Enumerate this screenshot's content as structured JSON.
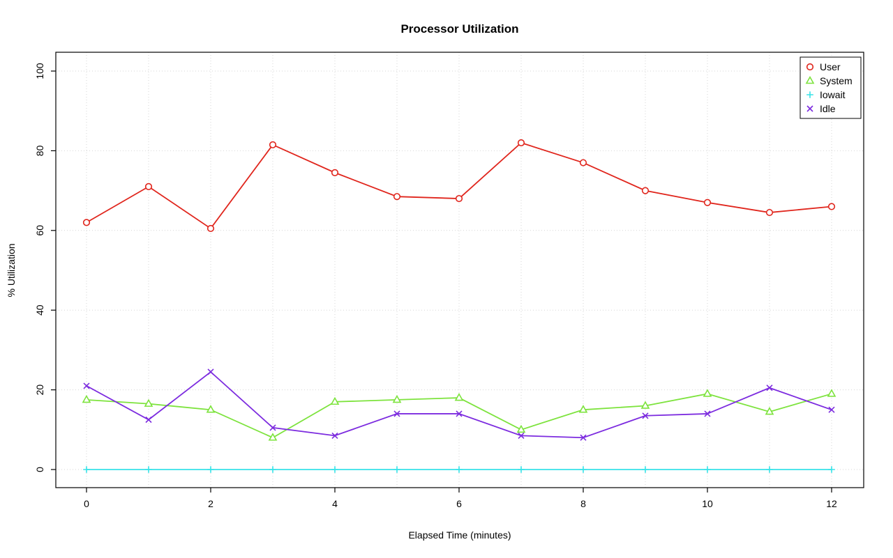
{
  "chart_data": {
    "type": "line",
    "title": "Processor Utilization",
    "xlabel": "Elapsed Time (minutes)",
    "ylabel": "% Utilization",
    "xlim": [
      0,
      12
    ],
    "ylim": [
      0,
      100
    ],
    "x_ticks": [
      0,
      2,
      4,
      6,
      8,
      10,
      12
    ],
    "y_ticks": [
      0,
      20,
      40,
      60,
      80,
      100
    ],
    "grid": true,
    "grid_style": "dotted",
    "grid_color": "#d6d6d6",
    "legend_position": "top-right",
    "x": [
      0,
      1,
      2,
      3,
      4,
      5,
      6,
      7,
      8,
      9,
      10,
      11,
      12
    ],
    "series": [
      {
        "name": "User",
        "color": "#e0251c",
        "marker": "circle",
        "values": [
          62,
          71,
          60.5,
          81.5,
          74.5,
          68.5,
          68,
          82,
          77,
          70,
          67,
          64.5,
          66
        ]
      },
      {
        "name": "System",
        "color": "#7de33d",
        "marker": "triangle",
        "values": [
          17.5,
          16.5,
          15,
          8,
          17,
          17.5,
          18,
          10,
          15,
          16,
          19,
          14.5,
          19
        ]
      },
      {
        "name": "Iowait",
        "color": "#36e3e8",
        "marker": "plus",
        "values": [
          0,
          0,
          0,
          0,
          0,
          0,
          0,
          0,
          0,
          0,
          0,
          0,
          0
        ]
      },
      {
        "name": "Idle",
        "color": "#7c2bdf",
        "marker": "x",
        "values": [
          21,
          12.5,
          24.5,
          10.5,
          8.5,
          14,
          14,
          8.5,
          8,
          13.5,
          14,
          20.5,
          15
        ]
      }
    ]
  }
}
